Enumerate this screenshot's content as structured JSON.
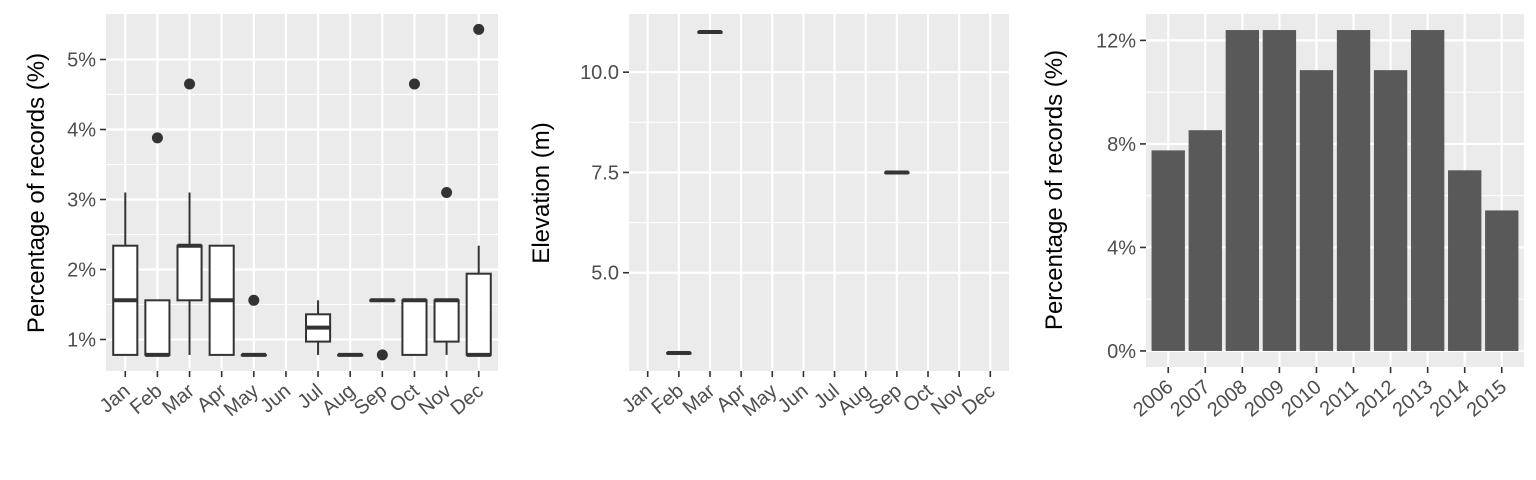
{
  "chart_data": [
    {
      "type": "box",
      "ylabel": "Percentage of records (%)",
      "xlabel": "",
      "categories": [
        "Jan",
        "Feb",
        "Mar",
        "Apr",
        "May",
        "Jun",
        "Jul",
        "Aug",
        "Sep",
        "Oct",
        "Nov",
        "Dec"
      ],
      "y_ticks": [
        1,
        2,
        3,
        4,
        5
      ],
      "y_tick_labels": [
        "1%",
        "2%",
        "3%",
        "4%",
        "5%"
      ],
      "ylim": [
        0.55,
        5.65
      ],
      "grid": true,
      "boxes": [
        {
          "category": "Jan",
          "whisker_low": 0.78,
          "q1": 0.78,
          "median": 1.56,
          "q3": 2.34,
          "whisker_high": 3.1,
          "outliers": []
        },
        {
          "category": "Feb",
          "whisker_low": 0.78,
          "q1": 0.78,
          "median": 0.78,
          "q3": 1.56,
          "whisker_high": 1.56,
          "outliers": [
            3.88
          ]
        },
        {
          "category": "Mar",
          "whisker_low": 0.78,
          "q1": 1.56,
          "median": 2.34,
          "q3": 2.34,
          "whisker_high": 3.1,
          "outliers": [
            4.65
          ]
        },
        {
          "category": "Apr",
          "whisker_low": 0.78,
          "q1": 0.78,
          "median": 1.56,
          "q3": 2.34,
          "whisker_high": 2.34,
          "outliers": []
        },
        {
          "category": "May",
          "whisker_low": 0.78,
          "q1": 0.78,
          "median": 0.78,
          "q3": 0.78,
          "whisker_high": 0.78,
          "outliers": [
            1.56
          ]
        },
        {
          "category": "Jul",
          "whisker_low": 0.78,
          "q1": 0.97,
          "median": 1.17,
          "q3": 1.36,
          "whisker_high": 1.56,
          "outliers": []
        },
        {
          "category": "Aug",
          "whisker_low": 0.78,
          "q1": 0.78,
          "median": 0.78,
          "q3": 0.78,
          "whisker_high": 0.78,
          "outliers": []
        },
        {
          "category": "Sep",
          "whisker_low": 1.56,
          "q1": 1.56,
          "median": 1.56,
          "q3": 1.56,
          "whisker_high": 1.56,
          "outliers": [
            0.78
          ]
        },
        {
          "category": "Oct",
          "whisker_low": 0.78,
          "q1": 0.78,
          "median": 1.56,
          "q3": 1.56,
          "whisker_high": 1.56,
          "outliers": [
            4.65
          ]
        },
        {
          "category": "Nov",
          "whisker_low": 0.78,
          "q1": 0.97,
          "median": 1.56,
          "q3": 1.56,
          "whisker_high": 1.56,
          "outliers": [
            3.1
          ]
        },
        {
          "category": "Dec",
          "whisker_low": 0.78,
          "q1": 0.78,
          "median": 0.78,
          "q3": 1.94,
          "whisker_high": 2.34,
          "outliers": [
            5.43
          ]
        }
      ]
    },
    {
      "type": "box",
      "ylabel": "Elevation (m)",
      "xlabel": "",
      "categories": [
        "Jan",
        "Feb",
        "Mar",
        "Apr",
        "May",
        "Jun",
        "Jul",
        "Aug",
        "Sep",
        "Oct",
        "Nov",
        "Dec"
      ],
      "y_ticks": [
        5.0,
        7.5,
        10.0
      ],
      "y_tick_labels": [
        "5.0",
        "7.5",
        "10.0"
      ],
      "ylim": [
        2.55,
        11.45
      ],
      "grid": true,
      "boxes": [
        {
          "category": "Feb",
          "whisker_low": 3.0,
          "q1": 3.0,
          "median": 3.0,
          "q3": 3.0,
          "whisker_high": 3.0,
          "outliers": []
        },
        {
          "category": "Mar",
          "whisker_low": 11.0,
          "q1": 11.0,
          "median": 11.0,
          "q3": 11.0,
          "whisker_high": 11.0,
          "outliers": []
        },
        {
          "category": "Sep",
          "whisker_low": 7.5,
          "q1": 7.5,
          "median": 7.5,
          "q3": 7.5,
          "whisker_high": 7.5,
          "outliers": []
        }
      ]
    },
    {
      "type": "bar",
      "ylabel": "Percentage of records (%)",
      "xlabel": "",
      "categories": [
        "2006",
        "2007",
        "2008",
        "2009",
        "2010",
        "2011",
        "2012",
        "2013",
        "2014",
        "2015"
      ],
      "values": [
        7.75,
        8.53,
        12.4,
        12.4,
        10.85,
        12.4,
        10.85,
        12.4,
        6.98,
        5.43
      ],
      "y_ticks": [
        0,
        4,
        8,
        12
      ],
      "y_tick_labels": [
        "0%",
        "4%",
        "8%",
        "12%"
      ],
      "ylim": [
        -0.62,
        13.02
      ],
      "grid": true,
      "bar_color": "#595959"
    }
  ],
  "colors": {
    "panel_background": "#ebebeb",
    "grid_line": "#ffffff",
    "box_outline": "#333333",
    "tick_text": "#4d4d4d"
  }
}
